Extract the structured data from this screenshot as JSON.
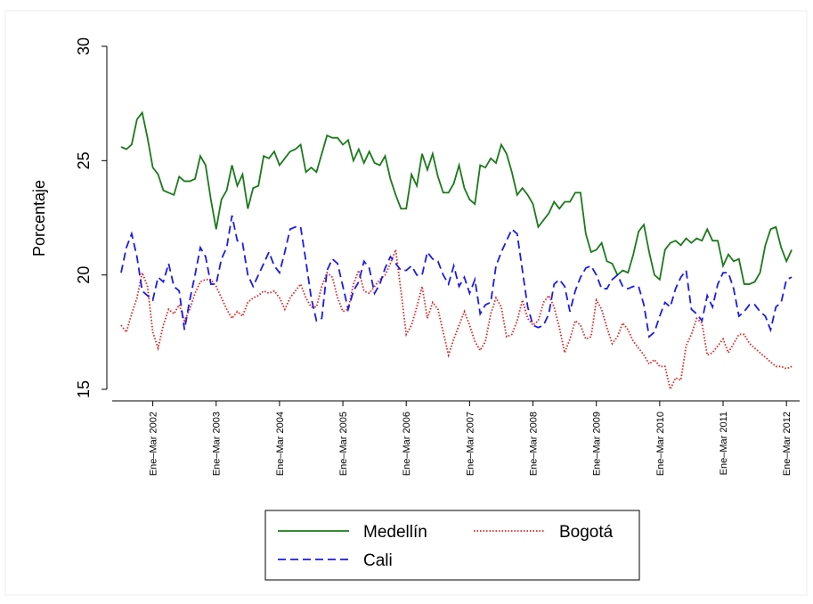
{
  "chart_data": {
    "type": "line",
    "y_label": "Porcentaje",
    "categories": [
      null,
      null,
      null,
      null,
      null,
      null,
      "Ene–Mar 2002",
      null,
      null,
      null,
      null,
      null,
      null,
      null,
      null,
      null,
      null,
      null,
      "Ene–Mar 2003",
      null,
      null,
      null,
      null,
      null,
      null,
      null,
      null,
      null,
      null,
      null,
      "Ene–Mar 2004",
      null,
      null,
      null,
      null,
      null,
      null,
      null,
      null,
      null,
      null,
      null,
      "Ene–Mar 2005",
      null,
      null,
      null,
      null,
      null,
      null,
      null,
      null,
      null,
      null,
      null,
      "Ene–Mar 2006",
      null,
      null,
      null,
      null,
      null,
      null,
      null,
      null,
      null,
      null,
      null,
      "Ene–Mar 2007",
      null,
      null,
      null,
      null,
      null,
      null,
      null,
      null,
      null,
      null,
      null,
      "Ene–Mar 2008",
      null,
      null,
      null,
      null,
      null,
      null,
      null,
      null,
      null,
      null,
      null,
      "Ene–Mar 2009",
      null,
      null,
      null,
      null,
      null,
      null,
      null,
      null,
      null,
      null,
      null,
      "Ene–Mar 2010",
      null,
      null,
      null,
      null,
      null,
      null,
      null,
      null,
      null,
      null,
      null,
      "Ene–Mar 2011",
      null,
      null,
      null,
      null,
      null,
      null,
      null,
      null,
      null,
      null,
      null,
      "Ene–Mar 2012",
      null
    ],
    "series": [
      {
        "name": "Medellín",
        "color": "#1a7a1a",
        "dash": "solid",
        "values": [
          25.6,
          25.5,
          25.7,
          26.8,
          27.1,
          26,
          24.7,
          24.4,
          23.7,
          23.6,
          23.5,
          24.3,
          24.1,
          24.1,
          24.2,
          25.2,
          24.8,
          23.3,
          22.0,
          23.3,
          23.7,
          24.8,
          23.9,
          24.4,
          22.9,
          23.8,
          23.9,
          25.2,
          25.1,
          25.4,
          24.8,
          25.1,
          25.4,
          25.5,
          25.7,
          24.5,
          24.7,
          24.5,
          25.3,
          26.1,
          26.0,
          26.0,
          25.7,
          25.9,
          25.0,
          25.5,
          24.9,
          25.4,
          24.9,
          24.8,
          25.2,
          24.2,
          23.5,
          22.9,
          22.9,
          24.4,
          23.9,
          25.3,
          24.6,
          25.3,
          24.3,
          23.6,
          23.6,
          24.0,
          24.8,
          23.8,
          23.3,
          23.1,
          24.8,
          24.7,
          25.1,
          24.9,
          25.7,
          25.3,
          24.5,
          23.5,
          23.8,
          23.5,
          23.1,
          22.1,
          22.4,
          22.7,
          23.2,
          22.9,
          23.2,
          23.2,
          23.6,
          23.6,
          21.8,
          21.0,
          21.1,
          21.4,
          20.6,
          20.5,
          20.0,
          20.2,
          20.1,
          20.9,
          21.9,
          22.2,
          21.0,
          20.0,
          19.8,
          21.1,
          21.4,
          21.5,
          21.3,
          21.6,
          21.4,
          21.6,
          21.5,
          22.0,
          21.5,
          21.5,
          20.4,
          20.9,
          20.6,
          20.7,
          19.6,
          19.6,
          19.7,
          20.1,
          21.3,
          22.0,
          22.1,
          21.2,
          20.6,
          21.1
        ]
      },
      {
        "name": "Bogotá",
        "color": "#e02020",
        "dash": "dotted",
        "values": [
          17.8,
          17.5,
          18.3,
          19.0,
          20.1,
          19.5,
          17.5,
          16.8,
          17.8,
          18.5,
          18.3,
          18.7,
          18.0,
          18.5,
          19.2,
          19.7,
          19.8,
          19.8,
          19.5,
          19.0,
          18.5,
          18.1,
          18.4,
          18.2,
          18.8,
          19.0,
          19.1,
          19.3,
          19.2,
          19.3,
          19.0,
          18.5,
          19.0,
          19.3,
          19.6,
          19.0,
          18.6,
          18.6,
          19.5,
          20.1,
          19.9,
          19.0,
          18.4,
          18.5,
          19.6,
          20.2,
          19.3,
          19.2,
          19.5,
          19.8,
          20.0,
          20.5,
          21.1,
          19.3,
          17.4,
          17.8,
          18.6,
          19.5,
          18.1,
          18.8,
          18.5,
          17.5,
          16.5,
          17.2,
          17.8,
          18.4,
          17.8,
          17.1,
          16.7,
          17.1,
          18.3,
          19.0,
          18.6,
          17.3,
          17.4,
          18.0,
          18.9,
          18.1,
          17.8,
          18.0,
          18.8,
          19.1,
          18.6,
          17.7,
          16.6,
          17.2,
          18.0,
          17.8,
          17.2,
          17.3,
          18.9,
          18.5,
          17.7,
          17.0,
          17.3,
          17.9,
          17.6,
          17.1,
          16.8,
          16.5,
          16.1,
          16.3,
          16.0,
          16.0,
          15.0,
          15.5,
          15.4,
          16.9,
          17.4,
          18.1,
          17.9,
          16.5,
          16.6,
          16.9,
          17.2,
          16.6,
          17.0,
          17.4,
          17.4,
          17.0,
          16.8,
          16.6,
          16.4,
          16.2,
          16.0,
          16.0,
          15.9,
          16.0
        ]
      },
      {
        "name": "Cali",
        "color": "#1a1aee",
        "dash": "dashed",
        "values": [
          20.1,
          21.2,
          21.8,
          20.8,
          19.3,
          19.1,
          18.9,
          19.9,
          19.7,
          20.5,
          19.5,
          19.3,
          17.6,
          18.9,
          20.0,
          21.2,
          20.8,
          19.6,
          19.6,
          20.7,
          21.2,
          22.6,
          21.5,
          21.4,
          20.0,
          19.5,
          20.0,
          20.5,
          21.0,
          20.4,
          20.1,
          21.0,
          22.0,
          22.1,
          22.1,
          20.6,
          19.0,
          18.0,
          18.1,
          20.2,
          20.7,
          20.5,
          19.5,
          18.5,
          19.3,
          19.7,
          20.6,
          20.3,
          19.2,
          19.6,
          20.3,
          20.8,
          20.5,
          20.2,
          20.2,
          20.4,
          20.0,
          20.0,
          21.0,
          20.7,
          20.6,
          20.0,
          19.6,
          20.4,
          19.5,
          19.9,
          19.2,
          19.8,
          18.3,
          18.7,
          18.8,
          20.4,
          21.0,
          21.5,
          22.0,
          21.8,
          20.2,
          18.6,
          17.8,
          17.7,
          17.8,
          18.3,
          19.6,
          19.8,
          19.5,
          18.4,
          19.3,
          19.9,
          20.3,
          20.4,
          20.0,
          19.4,
          19.4,
          19.8,
          20.0,
          19.5,
          19.4,
          19.5,
          19.5,
          18.7,
          17.3,
          17.5,
          18.2,
          18.8,
          18.6,
          19.4,
          19.9,
          20.2,
          18.5,
          18.3,
          18.0,
          19.1,
          18.6,
          19.6,
          20.1,
          20.1,
          19.4,
          18.2,
          18.4,
          18.7,
          18.7,
          18.4,
          18.2,
          17.6,
          18.6,
          18.8,
          19.8,
          19.9
        ]
      }
    ],
    "ylim": [
      15,
      30
    ],
    "yticks": [
      15,
      20,
      25,
      30
    ],
    "grid": false
  }
}
